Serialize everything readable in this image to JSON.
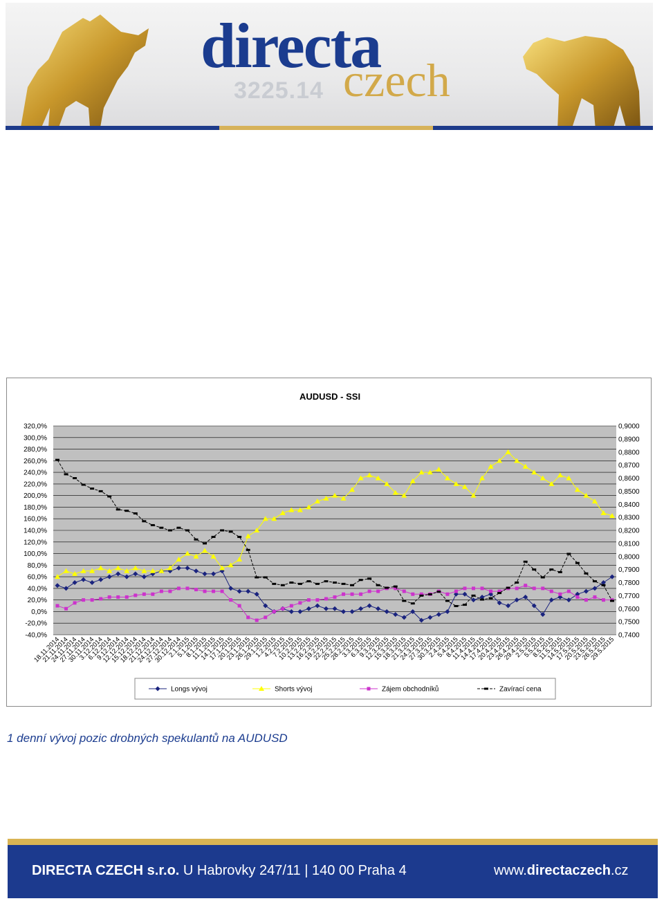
{
  "header": {
    "logo_main": "directa",
    "logo_sub": "czech",
    "background_ticker": "3225.14",
    "colors": {
      "blue": "#1b3c8f",
      "gold": "#d2a94a"
    }
  },
  "chart_data": {
    "type": "line",
    "title": "AUDUSD - SSI",
    "y_left_ticks": [
      "320,0%",
      "300,0%",
      "280,0%",
      "260,0%",
      "240,0%",
      "220,0%",
      "200,0%",
      "180,0%",
      "160,0%",
      "140,0%",
      "120,0%",
      "100,0%",
      "80,0%",
      "60,0%",
      "40,0%",
      "20,0%",
      "0,0%",
      "-20,0%",
      "-40,0%"
    ],
    "y_right_ticks": [
      "0,9000",
      "0,8900",
      "0,8800",
      "0,8700",
      "0,8600",
      "0,8500",
      "0,8400",
      "0,8300",
      "0,8200",
      "0,8100",
      "0,8000",
      "0,7900",
      "0,7800",
      "0,7700",
      "0,7600",
      "0,7500",
      "0,7400"
    ],
    "ylim_left": [
      -40,
      320
    ],
    "ylim_right": [
      0.74,
      0.9
    ],
    "x_ticks": [
      "18.11.2014",
      "21.11.2014",
      "24.11.2014",
      "27.11.2014",
      "30.11.2014",
      "3.12.2014",
      "6.12.2014",
      "9.12.2014",
      "12.12.2014",
      "15.12.2014",
      "18.12.2014",
      "21.12.2014",
      "24.12.2014",
      "27.12.2014",
      "30.12.2014",
      "2.1.2015",
      "5.1.2015",
      "8.1.2015",
      "11.1.2015",
      "14.1.2015",
      "17.1.2015",
      "20.1.2015",
      "23.1.2015",
      "26.1.2015",
      "29.1.2015",
      "1.2.2015",
      "4.2.2015",
      "7.2.2015",
      "10.2.2015",
      "13.2.2015",
      "16.2.2015",
      "19.2.2015",
      "22.2.2015",
      "25.2.2015",
      "28.2.2015",
      "3.3.2015",
      "6.3.2015",
      "9.3.2015",
      "12.3.2015",
      "15.3.2015",
      "18.3.2015",
      "21.3.2015",
      "24.3.2015",
      "27.3.2015",
      "30.3.2015",
      "2.4.2015",
      "5.4.2015",
      "8.4.2015",
      "11.4.2015",
      "14.4.2015",
      "17.4.2015",
      "20.4.2015",
      "23.4.2015",
      "26.4.2015",
      "29.4.2015",
      "2.5.2015",
      "5.5.2015",
      "8.5.2015",
      "11.5.2015",
      "14.5.2015",
      "17.5.2015",
      "20.5.2015",
      "23.5.2015",
      "26.5.2015",
      "29.5.2015"
    ],
    "grid": true,
    "legend_position": "bottom",
    "series": [
      {
        "name": "Longs vývoj",
        "axis": "left",
        "color": "#1a237e",
        "marker": "diamond",
        "values": [
          45,
          40,
          50,
          55,
          50,
          55,
          60,
          65,
          60,
          65,
          60,
          65,
          70,
          70,
          75,
          75,
          70,
          65,
          65,
          70,
          40,
          35,
          35,
          30,
          10,
          0,
          5,
          0,
          0,
          5,
          10,
          5,
          5,
          0,
          0,
          5,
          10,
          5,
          0,
          -5,
          -10,
          0,
          -15,
          -10,
          -5,
          0,
          30,
          30,
          20,
          25,
          30,
          15,
          10,
          20,
          25,
          10,
          -5,
          20,
          25,
          20,
          30,
          35,
          40,
          50,
          60
        ]
      },
      {
        "name": "Shorts vývoj",
        "axis": "left",
        "color": "#ffff00",
        "marker": "triangle",
        "values": [
          60,
          70,
          65,
          70,
          70,
          75,
          70,
          75,
          70,
          75,
          70,
          70,
          70,
          75,
          90,
          100,
          95,
          105,
          95,
          75,
          80,
          90,
          130,
          140,
          160,
          160,
          170,
          175,
          175,
          180,
          190,
          195,
          200,
          195,
          210,
          230,
          235,
          230,
          220,
          205,
          200,
          225,
          240,
          240,
          245,
          230,
          220,
          215,
          200,
          230,
          250,
          260,
          275,
          260,
          250,
          240,
          230,
          220,
          235,
          230,
          210,
          200,
          190,
          170,
          165
        ]
      },
      {
        "name": "Zájem obchodníků",
        "axis": "left",
        "color": "#cc33cc",
        "marker": "square",
        "values": [
          10,
          5,
          15,
          20,
          20,
          22,
          25,
          25,
          25,
          28,
          30,
          30,
          35,
          35,
          40,
          40,
          38,
          35,
          35,
          35,
          20,
          10,
          -10,
          -15,
          -10,
          0,
          5,
          10,
          15,
          20,
          20,
          22,
          25,
          30,
          30,
          30,
          35,
          35,
          40,
          40,
          35,
          30,
          30,
          30,
          35,
          30,
          35,
          40,
          40,
          40,
          35,
          35,
          40,
          40,
          45,
          40,
          40,
          35,
          30,
          35,
          25,
          20,
          25,
          20,
          20
        ]
      },
      {
        "name": "Zavírací cena",
        "axis": "right",
        "color": "#000000",
        "marker": "dash",
        "values": [
          0.874,
          0.863,
          0.86,
          0.855,
          0.852,
          0.85,
          0.846,
          0.836,
          0.835,
          0.833,
          0.827,
          0.824,
          0.822,
          0.82,
          0.822,
          0.82,
          0.813,
          0.81,
          0.815,
          0.82,
          0.819,
          0.815,
          0.805,
          0.784,
          0.784,
          0.779,
          0.778,
          0.78,
          0.779,
          0.781,
          0.779,
          0.781,
          0.78,
          0.779,
          0.778,
          0.782,
          0.783,
          0.778,
          0.776,
          0.777,
          0.766,
          0.764,
          0.77,
          0.771,
          0.773,
          0.766,
          0.762,
          0.763,
          0.77,
          0.767,
          0.768,
          0.772,
          0.776,
          0.78,
          0.796,
          0.79,
          0.784,
          0.79,
          0.788,
          0.802,
          0.795,
          0.787,
          0.781,
          0.778,
          0.766
        ]
      }
    ]
  },
  "caption": "1 denní vývoj pozic drobných spekulantů na AUDUSD",
  "footer": {
    "company": "DIRECTA CZECH s.r.o.",
    "address": "U Habrovky 247/11 | 140 00 Praha 4",
    "web_prefix": "www.",
    "web_bold": "directaczech",
    "web_suffix": ".cz"
  }
}
